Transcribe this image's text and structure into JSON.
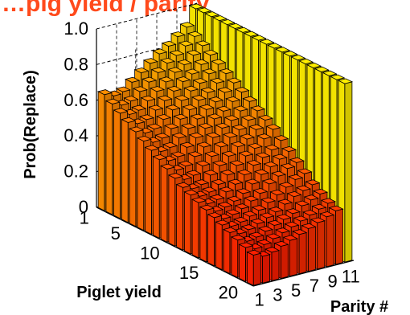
{
  "chart_data": {
    "type": "bar3d",
    "title": "…pig yield / parity",
    "xlabel": "Piglet yield",
    "ylabel": "Parity #",
    "zlabel": "Prob(Replace)",
    "x_range": [
      1,
      20
    ],
    "y_range": [
      1,
      11
    ],
    "zlim": [
      0,
      1.0
    ],
    "x_ticks": [
      "1",
      "5",
      "10",
      "15",
      "20"
    ],
    "y_ticks": [
      "1",
      "3",
      "5",
      "7",
      "9",
      "11"
    ],
    "z_ticks": [
      "0",
      "0.2",
      "0.4",
      "0.6",
      "0.8",
      "1.0"
    ],
    "grid": true,
    "colormap": [
      "#ff1a00",
      "#ff7a00",
      "#ffee00"
    ],
    "shape": "replacement probability is high for low piglet yield and for the last parity (1.0); it decreases with piglet yield and with early parity; a lower plateau (~0.3) for later parities at high yields",
    "surface": [
      [
        0.65,
        0.63,
        0.64,
        0.68,
        0.72,
        0.76,
        0.8,
        0.83,
        0.87,
        0.91,
        1.0
      ],
      [
        0.62,
        0.6,
        0.61,
        0.65,
        0.69,
        0.73,
        0.77,
        0.8,
        0.84,
        0.88,
        1.0
      ],
      [
        0.59,
        0.57,
        0.58,
        0.62,
        0.66,
        0.7,
        0.74,
        0.77,
        0.81,
        0.85,
        1.0
      ],
      [
        0.56,
        0.54,
        0.55,
        0.59,
        0.63,
        0.67,
        0.71,
        0.74,
        0.78,
        0.82,
        1.0
      ],
      [
        0.53,
        0.51,
        0.52,
        0.56,
        0.6,
        0.64,
        0.68,
        0.71,
        0.75,
        0.79,
        1.0
      ],
      [
        0.5,
        0.48,
        0.49,
        0.53,
        0.57,
        0.61,
        0.65,
        0.68,
        0.72,
        0.76,
        1.0
      ],
      [
        0.47,
        0.45,
        0.46,
        0.5,
        0.54,
        0.58,
        0.62,
        0.65,
        0.69,
        0.73,
        1.0
      ],
      [
        0.44,
        0.42,
        0.43,
        0.47,
        0.51,
        0.55,
        0.59,
        0.62,
        0.66,
        0.7,
        1.0
      ],
      [
        0.41,
        0.39,
        0.4,
        0.44,
        0.48,
        0.52,
        0.56,
        0.59,
        0.63,
        0.67,
        1.0
      ],
      [
        0.38,
        0.36,
        0.37,
        0.41,
        0.45,
        0.49,
        0.53,
        0.56,
        0.6,
        0.64,
        1.0
      ],
      [
        0.35,
        0.33,
        0.34,
        0.38,
        0.42,
        0.46,
        0.5,
        0.53,
        0.57,
        0.61,
        1.0
      ],
      [
        0.33,
        0.31,
        0.32,
        0.35,
        0.39,
        0.43,
        0.47,
        0.5,
        0.54,
        0.58,
        1.0
      ],
      [
        0.31,
        0.29,
        0.3,
        0.33,
        0.36,
        0.4,
        0.44,
        0.47,
        0.5,
        0.54,
        1.0
      ],
      [
        0.29,
        0.27,
        0.28,
        0.3,
        0.33,
        0.37,
        0.41,
        0.44,
        0.47,
        0.5,
        1.0
      ],
      [
        0.27,
        0.25,
        0.26,
        0.28,
        0.31,
        0.34,
        0.38,
        0.41,
        0.44,
        0.46,
        1.0
      ],
      [
        0.25,
        0.23,
        0.24,
        0.26,
        0.28,
        0.31,
        0.34,
        0.37,
        0.4,
        0.42,
        1.0
      ],
      [
        0.23,
        0.21,
        0.22,
        0.24,
        0.26,
        0.28,
        0.31,
        0.34,
        0.36,
        0.38,
        1.0
      ],
      [
        0.21,
        0.19,
        0.2,
        0.22,
        0.24,
        0.26,
        0.28,
        0.31,
        0.33,
        0.35,
        1.0
      ],
      [
        0.19,
        0.17,
        0.18,
        0.2,
        0.22,
        0.24,
        0.26,
        0.28,
        0.3,
        0.32,
        1.0
      ],
      [
        0.17,
        0.15,
        0.16,
        0.18,
        0.2,
        0.22,
        0.24,
        0.26,
        0.28,
        0.3,
        1.0
      ]
    ]
  }
}
